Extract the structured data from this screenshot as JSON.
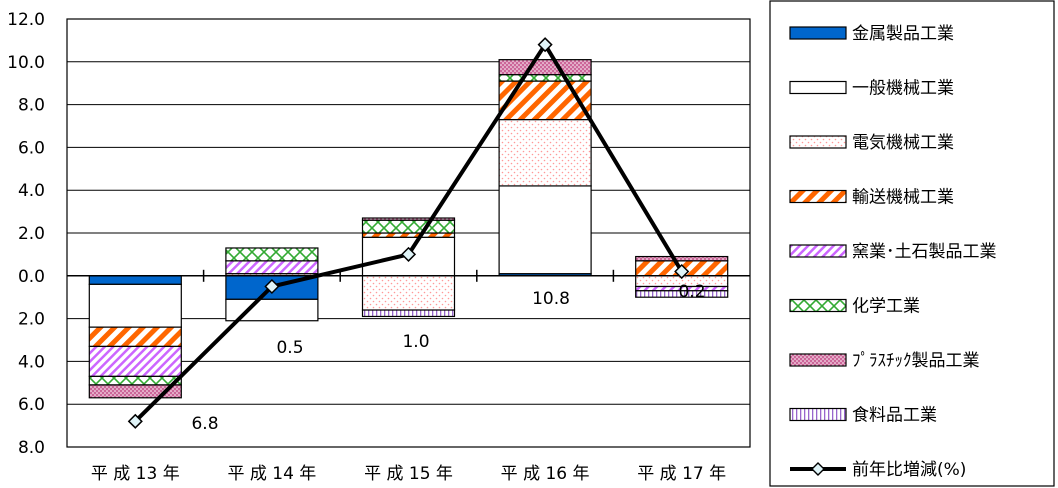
{
  "chart_data": {
    "type": "bar",
    "stacked": true,
    "categories": [
      "平 成 13 年",
      "平 成 14 年",
      "平 成 15 年",
      "平 成 16 年",
      "平 成 17 年"
    ],
    "ylim": [
      -8,
      12
    ],
    "yticks": [
      {
        "value": 12,
        "label": "12.0"
      },
      {
        "value": 10,
        "label": "10.0"
      },
      {
        "value": 8,
        "label": "8.0"
      },
      {
        "value": 6,
        "label": "6.0"
      },
      {
        "value": 4,
        "label": "4.0"
      },
      {
        "value": 2,
        "label": "2.0"
      },
      {
        "value": 0,
        "label": "0.0"
      },
      {
        "value": -2,
        "label": "2.0"
      },
      {
        "value": -4,
        "label": "4.0"
      },
      {
        "value": -6,
        "label": "6.0"
      },
      {
        "value": -8,
        "label": "8.0"
      }
    ],
    "grid": true,
    "legend_position": "right",
    "series": [
      {
        "name": "金属製品工業",
        "pattern": "metal",
        "values": [
          -0.4,
          -1.1,
          0.0,
          0.1,
          0.0
        ]
      },
      {
        "name": "一般機械工業",
        "pattern": "general",
        "values": [
          -2.0,
          -1.0,
          1.8,
          4.1,
          0.0
        ]
      },
      {
        "name": "電気機械工業",
        "pattern": "electric",
        "values": [
          0.0,
          0.1,
          -1.6,
          3.1,
          -0.5
        ]
      },
      {
        "name": "輸送機械工業",
        "pattern": "transport",
        "values": [
          -0.9,
          0.0,
          0.2,
          1.8,
          0.7
        ]
      },
      {
        "name": "窯業･土石製品工業",
        "pattern": "ceramic",
        "values": [
          -1.4,
          0.6,
          0.0,
          0.0,
          -0.2
        ]
      },
      {
        "name": "化学工業",
        "pattern": "chemical",
        "values": [
          -0.4,
          0.6,
          0.6,
          0.3,
          0.0
        ]
      },
      {
        "name": "ﾌﾟﾗｽﾁｯｸ製品工業",
        "pattern": "plastic",
        "values": [
          -0.6,
          0.0,
          0.1,
          0.7,
          0.2
        ]
      },
      {
        "name": "食料品工業",
        "pattern": "food",
        "values": [
          0.0,
          0.0,
          -0.3,
          0.0,
          -0.3
        ]
      }
    ],
    "line": {
      "name": "前年比増減(%)",
      "values": [
        -6.8,
        -0.5,
        1.0,
        10.8,
        0.2
      ],
      "labels": [
        "6.8",
        "0.5",
        "1.0",
        "10.8",
        "0.2"
      ]
    },
    "colors": {
      "metal": "#0066cc",
      "transport": "#ff6600",
      "ceramic": "#cc66ff",
      "chemical": "#33aa33",
      "plastic": "#cc6699",
      "electric": "#ff9999",
      "food": "#9966cc",
      "line": "#000000",
      "marker": "#e0f4f8"
    }
  }
}
